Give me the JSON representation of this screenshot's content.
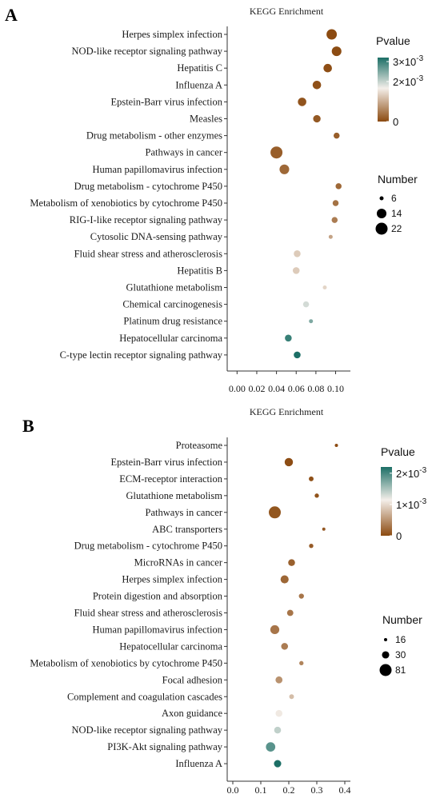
{
  "chart_data": [
    {
      "type": "scatter",
      "panel_label": "A",
      "title": "KEGG Enrichment",
      "xlabel": "",
      "ylabel": "",
      "xlim": [
        -0.01,
        0.115
      ],
      "x_ticks": [
        0.0,
        0.02,
        0.04,
        0.06,
        0.08,
        0.1
      ],
      "x_tick_labels": [
        "0.00",
        "0.02",
        "0.04",
        "0.06",
        "0.08",
        "0.10"
      ],
      "legend_color": {
        "title": "Pvalue",
        "min": 0,
        "max": 0.0032,
        "tick_values": [
          0.003,
          0.002,
          0
        ],
        "tick_labels": [
          "3×10",
          "2×10",
          "0"
        ],
        "tick_exponents": [
          "-3",
          "-3",
          ""
        ]
      },
      "legend_size": {
        "title": "Number",
        "values": [
          6,
          14,
          22
        ],
        "labels": [
          "6",
          "14",
          "22"
        ]
      },
      "points": [
        {
          "term": "Herpes simplex infection",
          "ratio": 0.096,
          "pvalue": 1e-05,
          "count": 16
        },
        {
          "term": "NOD-like receptor signaling pathway",
          "ratio": 0.101,
          "pvalue": 2e-05,
          "count": 14
        },
        {
          "term": "Hepatitis C",
          "ratio": 0.092,
          "pvalue": 4e-05,
          "count": 11
        },
        {
          "term": "Influenza A",
          "ratio": 0.081,
          "pvalue": 6e-05,
          "count": 11
        },
        {
          "term": "Epstein-Barr virus infection",
          "ratio": 0.066,
          "pvalue": 0.0001,
          "count": 11
        },
        {
          "term": "Measles",
          "ratio": 0.081,
          "pvalue": 0.00015,
          "count": 9
        },
        {
          "term": "Drug metabolism - other enzymes",
          "ratio": 0.101,
          "pvalue": 0.0002,
          "count": 7
        },
        {
          "term": "Pathways in cancer",
          "ratio": 0.04,
          "pvalue": 0.0002,
          "count": 22
        },
        {
          "term": "Human papillomavirus infection",
          "ratio": 0.048,
          "pvalue": 0.0003,
          "count": 14
        },
        {
          "term": "Drug metabolism - cytochrome P450",
          "ratio": 0.103,
          "pvalue": 0.0003,
          "count": 7
        },
        {
          "term": "Metabolism of xenobiotics by cytochrome P450",
          "ratio": 0.1,
          "pvalue": 0.0004,
          "count": 7
        },
        {
          "term": "RIG-I-like receptor signaling pathway",
          "ratio": 0.099,
          "pvalue": 0.0005,
          "count": 7
        },
        {
          "term": "Cytosolic DNA-sensing pathway",
          "ratio": 0.095,
          "pvalue": 0.0009,
          "count": 6
        },
        {
          "term": "Fluid shear stress and atherosclerosis",
          "ratio": 0.061,
          "pvalue": 0.0013,
          "count": 8
        },
        {
          "term": "Hepatitis B",
          "ratio": 0.06,
          "pvalue": 0.0013,
          "count": 8
        },
        {
          "term": "Glutathione metabolism",
          "ratio": 0.089,
          "pvalue": 0.0014,
          "count": 6
        },
        {
          "term": "Chemical carcinogenesis",
          "ratio": 0.07,
          "pvalue": 0.0019,
          "count": 7
        },
        {
          "term": "Platinum drug resistance",
          "ratio": 0.075,
          "pvalue": 0.0025,
          "count": 6
        },
        {
          "term": "Hepatocellular carcinoma",
          "ratio": 0.052,
          "pvalue": 0.003,
          "count": 8
        },
        {
          "term": "C-type lectin receptor signaling pathway",
          "ratio": 0.061,
          "pvalue": 0.0032,
          "count": 8
        }
      ]
    },
    {
      "type": "scatter",
      "panel_label": "B",
      "title": "KEGG Enrichment",
      "xlabel": "",
      "ylabel": "",
      "xlim": [
        -0.02,
        0.42
      ],
      "x_ticks": [
        0.0,
        0.1,
        0.2,
        0.3,
        0.4
      ],
      "x_tick_labels": [
        "0.0",
        "0.1",
        "0.2",
        "0.3",
        "0.4"
      ],
      "legend_color": {
        "title": "Pvalue",
        "min": 0,
        "max": 0.0022,
        "tick_values": [
          0.002,
          0.001,
          0
        ],
        "tick_labels": [
          "2×10",
          "1×10",
          "0"
        ],
        "tick_exponents": [
          "-3",
          "-3",
          ""
        ]
      },
      "legend_size": {
        "title": "Number",
        "values": [
          16,
          30,
          81
        ],
        "labels": [
          "16",
          "30",
          "81"
        ]
      },
      "points": [
        {
          "term": "Proteasome",
          "ratio": 0.37,
          "pvalue": 1e-05,
          "count": 16
        },
        {
          "term": "Epstein-Barr virus infection",
          "ratio": 0.2,
          "pvalue": 2e-05,
          "count": 38
        },
        {
          "term": "ECM-receptor interaction",
          "ratio": 0.28,
          "pvalue": 4e-05,
          "count": 18
        },
        {
          "term": "Glutathione metabolism",
          "ratio": 0.3,
          "pvalue": 6e-05,
          "count": 17
        },
        {
          "term": "Pathways in cancer",
          "ratio": 0.15,
          "pvalue": 8e-05,
          "count": 81
        },
        {
          "term": "ABC transporters",
          "ratio": 0.325,
          "pvalue": 0.0001,
          "count": 16
        },
        {
          "term": "Drug metabolism - cytochrome P450",
          "ratio": 0.28,
          "pvalue": 0.00012,
          "count": 17
        },
        {
          "term": "MicroRNAs in cancer",
          "ratio": 0.21,
          "pvalue": 0.00015,
          "count": 27
        },
        {
          "term": "Herpes simplex infection",
          "ratio": 0.185,
          "pvalue": 0.0002,
          "count": 36
        },
        {
          "term": "Protein digestion and absorption",
          "ratio": 0.245,
          "pvalue": 0.0003,
          "count": 19
        },
        {
          "term": "Fluid shear stress and atherosclerosis",
          "ratio": 0.205,
          "pvalue": 0.0003,
          "count": 24
        },
        {
          "term": "Human papillomavirus infection",
          "ratio": 0.15,
          "pvalue": 0.0003,
          "count": 44
        },
        {
          "term": "Hepatocellular carcinoma",
          "ratio": 0.185,
          "pvalue": 0.00035,
          "count": 27
        },
        {
          "term": "Metabolism of xenobiotics by cytochrome P450",
          "ratio": 0.245,
          "pvalue": 0.0004,
          "count": 17
        },
        {
          "term": "Focal adhesion",
          "ratio": 0.165,
          "pvalue": 0.0005,
          "count": 28
        },
        {
          "term": "Complement and coagulation cascades",
          "ratio": 0.21,
          "pvalue": 0.0008,
          "count": 18
        },
        {
          "term": "Axon guidance",
          "ratio": 0.165,
          "pvalue": 0.0011,
          "count": 27
        },
        {
          "term": "NOD-like receptor signaling pathway",
          "ratio": 0.16,
          "pvalue": 0.0014,
          "count": 27
        },
        {
          "term": "PI3K-Akt signaling pathway",
          "ratio": 0.135,
          "pvalue": 0.0019,
          "count": 48
        },
        {
          "term": "Influenza A",
          "ratio": 0.16,
          "pvalue": 0.0022,
          "count": 30
        }
      ]
    }
  ],
  "colors": {
    "low": "#8B4A10",
    "mid": "#F4EFEA",
    "high": "#1C6F66"
  }
}
